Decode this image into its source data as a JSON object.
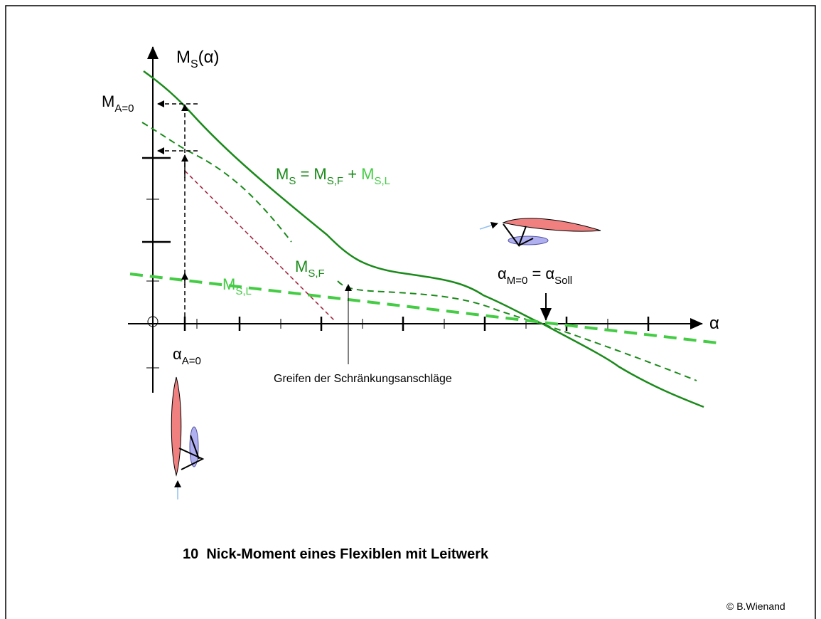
{
  "y_axis": {
    "main": "M",
    "sub": "S",
    "tail": "(α)"
  },
  "x_axis": "α",
  "m_a0": {
    "main": "M",
    "sub": "A=0"
  },
  "alpha_a0": {
    "main": "α",
    "sub": "A=0"
  },
  "equation": {
    "parts": [
      "M",
      "S",
      " = M",
      "S,F",
      " + ",
      "M",
      "S,L"
    ]
  },
  "m_sf": {
    "main": "M",
    "sub": "S,F"
  },
  "m_sl": {
    "main": "M",
    "sub": "S,L"
  },
  "alpha_soll": {
    "parts": [
      "α",
      "M=0",
      " = α",
      "Soll"
    ]
  },
  "stops_note": "Greifen der Schränkungsanschläge",
  "caption": "10  Nick-Moment eines Flexiblen mit Leitwerk",
  "copyright": "© B.Wienand"
}
